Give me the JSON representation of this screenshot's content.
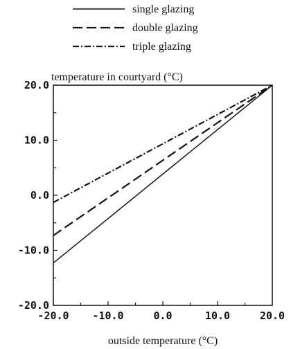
{
  "chart_data": {
    "type": "line",
    "title": "temperature in courtyard (°C)",
    "xlabel": "outside temperature (°C)",
    "ylabel": "",
    "xlim": [
      -20,
      20
    ],
    "ylim": [
      -20,
      20
    ],
    "x_ticks": [
      "-20.0",
      "-10.0",
      "0.0",
      "10.0",
      "20.0"
    ],
    "y_ticks": [
      "-20.0",
      "-10.0",
      "0.0",
      "10.0",
      "20.0"
    ],
    "grid": false,
    "legend_position": "top",
    "series": [
      {
        "name": "single glazing",
        "style": "solid",
        "x": [
          -20,
          20
        ],
        "y": [
          -12.3,
          20
        ]
      },
      {
        "name": "double glazing",
        "style": "dashed",
        "x": [
          -20,
          20
        ],
        "y": [
          -7.3,
          20
        ]
      },
      {
        "name": "triple glazing",
        "style": "dash-dot",
        "x": [
          -20,
          20
        ],
        "y": [
          -1.3,
          20
        ]
      }
    ]
  }
}
